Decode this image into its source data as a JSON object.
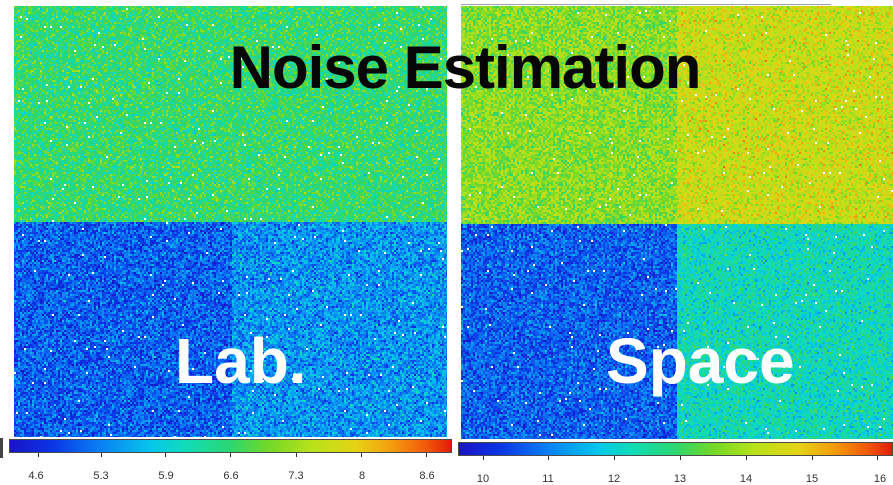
{
  "title": "Noise Estimation",
  "labels": {
    "left": "Lab.",
    "right": "Space"
  },
  "colorbars": {
    "left": {
      "ticks": [
        "4.6",
        "5.3",
        "5.9",
        "6.6",
        "7.3",
        "8",
        "8.6"
      ],
      "min": 4.3,
      "max": 8.9
    },
    "right": {
      "ticks": [
        "10",
        "11",
        "12",
        "13",
        "14",
        "15",
        "16"
      ],
      "min": 9.6,
      "max": 16.2
    }
  },
  "colors": {
    "title": "#060606",
    "overlay_text": "#ffffff"
  }
}
